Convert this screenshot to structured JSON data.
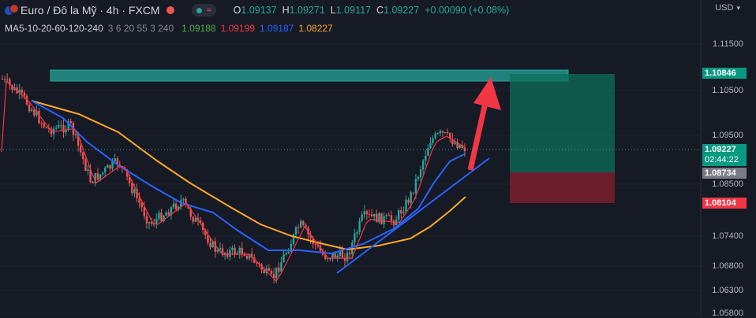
{
  "header": {
    "title": "Euro / Đô la Mỹ · 4h · FXCM",
    "open_key": "O",
    "open": "1.09137",
    "high_key": "H",
    "high": "1.09271",
    "low_key": "L",
    "low": "1.09117",
    "close_key": "C",
    "close": "1.09227",
    "change": "+0.00090 (+0.08%)",
    "pill_symbol": "≈"
  },
  "indicator": {
    "name": "MA5-10-20-60-120-240",
    "params": "3 6 20 55 3 240",
    "values": [
      "1.09188",
      "1.09199",
      "1.09187",
      "1.08227"
    ],
    "colors": [
      "#4caf50",
      "#f23645",
      "#2962ff",
      "#ffa726"
    ]
  },
  "currency": "USD",
  "price_axis": {
    "labels": [
      "1.11500",
      "1.10500",
      "1.09500",
      "1.08500",
      "1.07400",
      "1.06800",
      "1.06300",
      "1.05800"
    ]
  },
  "price_tags": {
    "target": {
      "value": "1.10846",
      "color": "#089981"
    },
    "current": {
      "value": "1.09227",
      "timer": "02:44:22",
      "color": "#089981"
    },
    "entry": {
      "value": "1.08734",
      "color": "#787b86"
    },
    "stop": {
      "value": "1.08104",
      "color": "#f23645"
    }
  },
  "colors": {
    "up": "#26a69a",
    "down": "#ef5350",
    "ma_green": "#4caf50",
    "ma_red": "#f23645",
    "ma_blue": "#2962ff",
    "ma_orange": "#ffa726",
    "arrow": "#f23645",
    "zone": "#26a69a"
  },
  "icons": [
    "symbol-flag-icon",
    "red-dot-icon",
    "chevron-down-icon",
    "trend-arrow-icon"
  ]
}
